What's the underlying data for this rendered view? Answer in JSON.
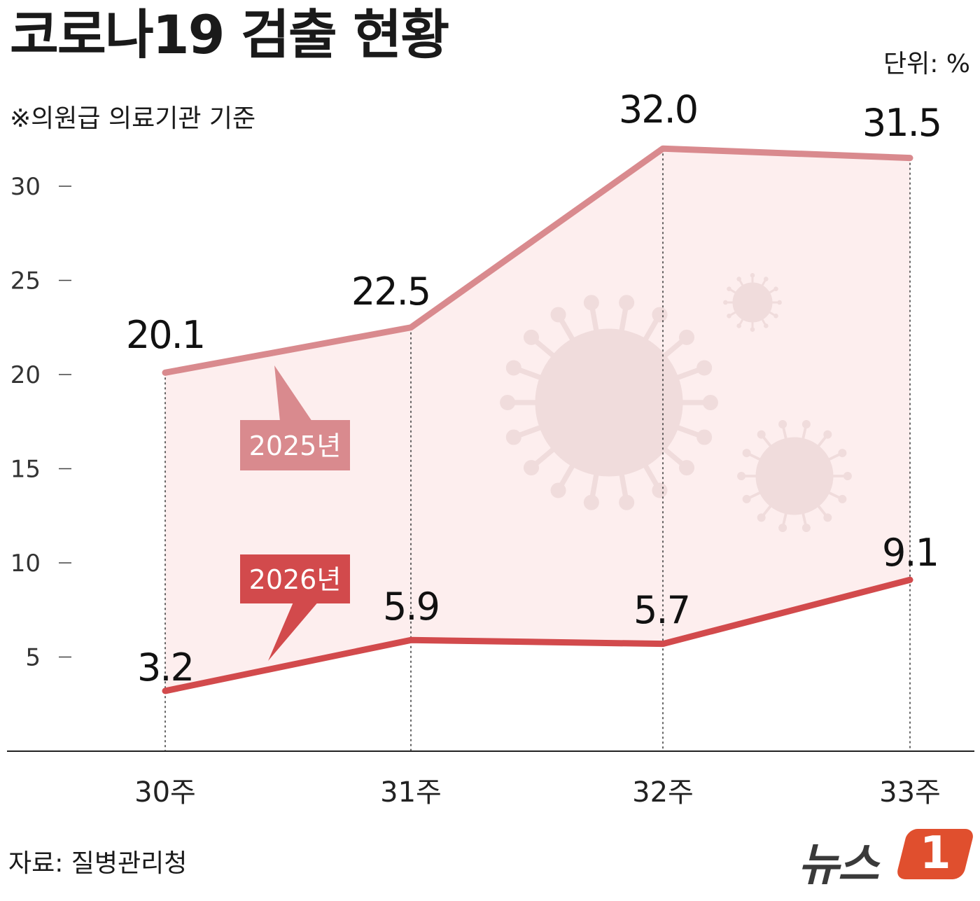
{
  "header": {
    "title": "코로나19 검출 현황",
    "unit": "단위: %",
    "subtitle": "※의원급 의료기관 기준"
  },
  "footer": {
    "source": "자료: 질병관리청",
    "logo_text": "뉴스",
    "logo_badge": "1"
  },
  "colors": {
    "series_2025": "#d98a8e",
    "series_2026": "#d24a4c",
    "fill": "#fdeeee",
    "virus": "#f0dcdc"
  },
  "chart_data": {
    "type": "line",
    "title": "코로나19 검출 현황",
    "subtitle": "※의원급 의료기관 기준",
    "unit": "%",
    "categories": [
      "30주",
      "31주",
      "32주",
      "33주"
    ],
    "series": [
      {
        "name": "2025년",
        "values": [
          20.1,
          22.5,
          32.0,
          31.5
        ],
        "labels": [
          "20.1",
          "22.5",
          "32.0",
          "31.5"
        ]
      },
      {
        "name": "2026년",
        "values": [
          3.2,
          5.9,
          5.7,
          9.1
        ],
        "labels": [
          "3.2",
          "5.9",
          "5.7",
          "9.1"
        ]
      }
    ],
    "yticks": [
      5,
      10,
      15,
      20,
      25,
      30
    ],
    "ylim": [
      0,
      30
    ],
    "grid": false,
    "legend": "callout labels on lines"
  }
}
